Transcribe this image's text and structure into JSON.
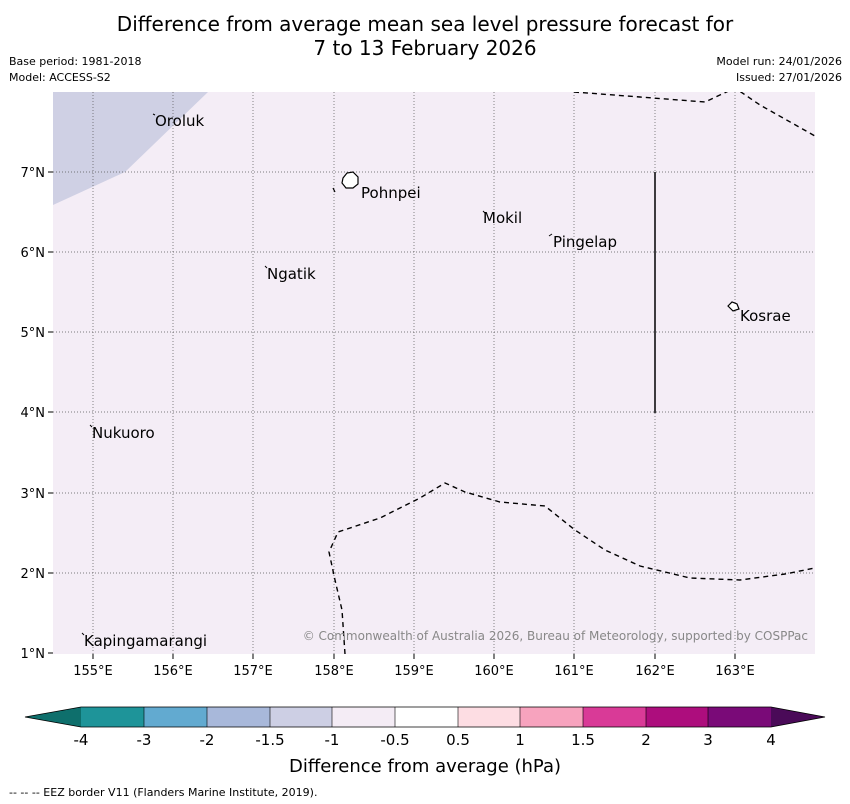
{
  "title": {
    "line1": "Difference from average mean sea level pressure forecast for",
    "line2": "7 to 13 February 2026"
  },
  "meta": {
    "base_period": "Base period: 1981-2018",
    "model": "Model: ACCESS-S2",
    "model_run": "Model run: 24/01/2026",
    "issued": "Issued: 27/01/2026"
  },
  "map": {
    "lat_labels": [
      "7°N",
      "6°N",
      "5°N",
      "4°N",
      "3°N",
      "2°N",
      "1°N"
    ],
    "lon_labels": [
      "155°E",
      "156°E",
      "157°E",
      "158°E",
      "159°E",
      "160°E",
      "161°E",
      "162°E",
      "163°E"
    ],
    "places": [
      "Oroluk",
      "Pohnpei",
      "Mokil",
      "Pingelap",
      "Ngatik",
      "Kosrae",
      "Nukuoro",
      "Kapingamarangi"
    ],
    "copyright": "© Commonwealth of Australia 2026, Bureau of Meteorology, supported by COSPPac"
  },
  "legend": {
    "colors": [
      "#0e6f6c",
      "#1e9499",
      "#62aad0",
      "#a8b8da",
      "#cdcfe4",
      "#f4ecf5",
      "#ffffff",
      "#fddde3",
      "#f7a3be",
      "#d93a97",
      "#ad0d7d",
      "#7a0a78",
      "#4a0a58"
    ],
    "tick_labels": [
      "-4",
      "-3",
      "-2",
      "-1.5",
      "-1",
      "-0.5",
      "0.5",
      "1",
      "1.5",
      "2",
      "3",
      "4"
    ],
    "label": "Difference from average (hPa)"
  },
  "footnote": "--  --  -- EEZ border V11 (Flanders Marine Institute, 2019)."
}
